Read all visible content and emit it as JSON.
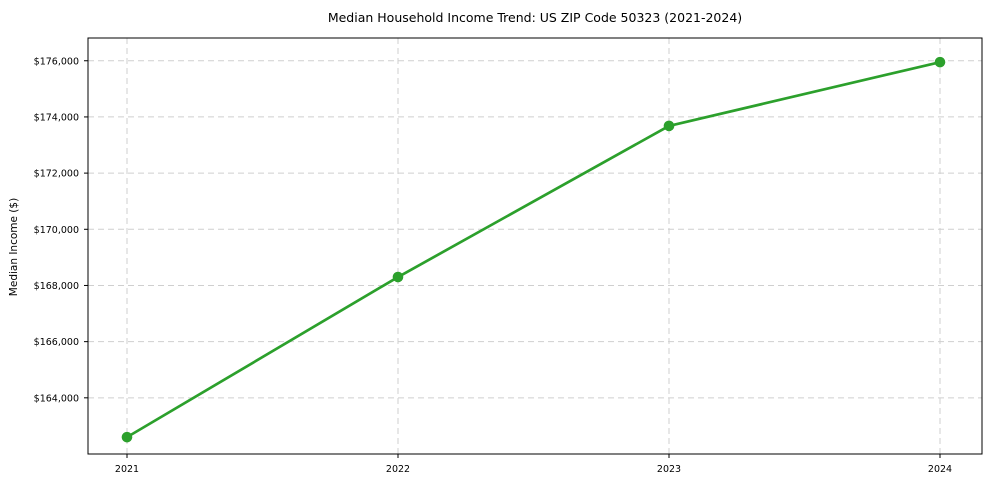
{
  "chart_data": {
    "type": "line",
    "title": "Median Household Income Trend: US ZIP Code 50323 (2021-2024)",
    "xlabel": "",
    "ylabel": "Median Income ($)",
    "categories": [
      "2021",
      "2022",
      "2023",
      "2024"
    ],
    "values": [
      162600,
      168300,
      173680,
      175950
    ],
    "ylim": [
      162000,
      176810
    ],
    "yticks": [
      164000,
      166000,
      168000,
      170000,
      172000,
      174000,
      176000
    ],
    "ytick_labels": [
      "$164,000",
      "$166,000",
      "$168,000",
      "$170,000",
      "$172,000",
      "$174,000",
      "$176,000"
    ],
    "xtick_labels": [
      "2021",
      "2022",
      "2023",
      "2024"
    ],
    "line_color": "#2ca02c",
    "marker": "circle",
    "grid": true,
    "grid_style": "dashed",
    "grid_color": "#cfcfcf",
    "axis_color": "#000000",
    "tick_label_color": "#000000",
    "legend": "none"
  }
}
